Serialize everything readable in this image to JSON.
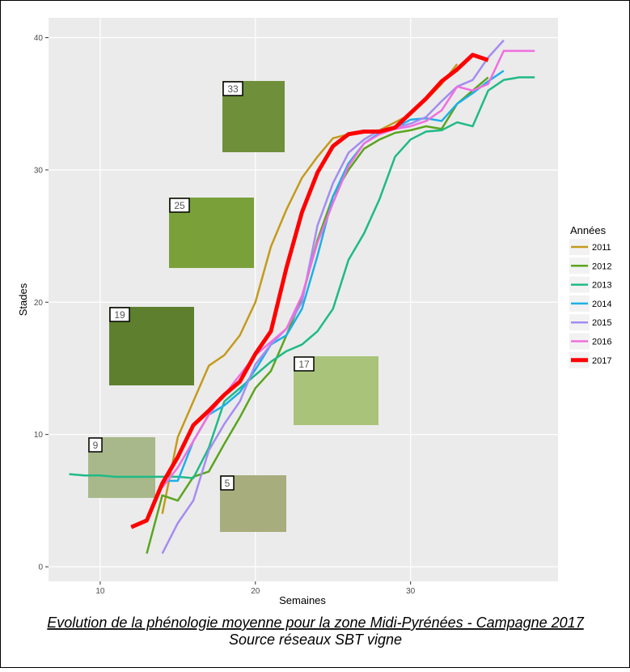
{
  "chart_data": {
    "type": "line",
    "xlabel": "Semaines",
    "ylabel": "Stades",
    "legend_title": "Années",
    "legend_position": "right",
    "caption": [
      "Evolution de la phénologie moyenne pour la zone Midi-Pyrénées - Campagne 2017",
      "Source réseaux SBT vigne"
    ],
    "image_labels": [
      "33",
      "25",
      "19",
      "17",
      "9",
      "5"
    ],
    "grid": true,
    "xlim": [
      6.67,
      39.5
    ],
    "xticks": [
      10,
      20,
      30
    ],
    "ylim": [
      -1.1,
      41.5
    ],
    "yticks": [
      0,
      10,
      20,
      30,
      40
    ],
    "x": [
      8,
      9,
      10,
      11,
      12,
      13,
      14,
      15,
      16,
      17,
      18,
      19,
      20,
      21,
      22,
      23,
      24,
      25,
      26,
      27,
      28,
      29,
      30,
      31,
      32,
      33,
      34,
      35,
      36,
      37,
      38
    ],
    "series": [
      {
        "name": "2011",
        "color": "#c49a1c",
        "values": [
          null,
          null,
          null,
          null,
          null,
          null,
          4,
          9.8,
          12.5,
          15.2,
          16,
          17.5,
          20,
          24.2,
          27,
          29.4,
          31,
          32.4,
          32.7,
          32.9,
          33,
          33.6,
          34.2,
          35.3,
          36.5,
          38,
          null,
          null,
          null,
          null,
          null
        ]
      },
      {
        "name": "2012",
        "color": "#5aa51e",
        "values": [
          null,
          null,
          null,
          null,
          null,
          1,
          5.4,
          5,
          6.8,
          7.2,
          9.3,
          11.3,
          13.5,
          14.8,
          17.5,
          20.3,
          24.7,
          28,
          30,
          31.6,
          32.3,
          32.8,
          33,
          33.3,
          33.1,
          35,
          36,
          37,
          null,
          null,
          null
        ]
      },
      {
        "name": "2013",
        "color": "#1fba86",
        "values": [
          7,
          6.9,
          6.9,
          6.8,
          6.8,
          6.8,
          6.8,
          6.8,
          6.7,
          9,
          12.5,
          13.5,
          14.5,
          15.5,
          16.3,
          16.8,
          17.8,
          19.5,
          23.2,
          25.2,
          27.8,
          31,
          32.3,
          32.9,
          33,
          33.6,
          33.3,
          36,
          36.8,
          37,
          37
        ]
      },
      {
        "name": "2014",
        "color": "#1cb0e8",
        "values": [
          null,
          null,
          null,
          null,
          null,
          null,
          6.5,
          6.5,
          9.5,
          11.5,
          12.2,
          13.2,
          14.9,
          16.8,
          17.5,
          19.5,
          23.5,
          28,
          30.5,
          32,
          32.8,
          33.2,
          33.8,
          33.9,
          33.7,
          35,
          35.8,
          36.7,
          37.5,
          null,
          null
        ]
      },
      {
        "name": "2015",
        "color": "#a48cf0",
        "values": [
          null,
          null,
          null,
          null,
          null,
          null,
          1,
          3.3,
          5,
          8.8,
          10.8,
          12.5,
          15.3,
          16.8,
          18,
          20,
          25.8,
          29,
          31.3,
          32.3,
          33,
          33.2,
          33.5,
          34,
          35.2,
          36.3,
          36.8,
          38.5,
          39.8,
          null,
          null
        ]
      },
      {
        "name": "2016",
        "color": "#f06ee0",
        "values": [
          null,
          null,
          null,
          null,
          null,
          null,
          6,
          7.5,
          9.5,
          11.5,
          13,
          14.5,
          16,
          17,
          18,
          20.5,
          24.5,
          27.5,
          30.3,
          32,
          32.7,
          33.1,
          33.3,
          33.7,
          34.5,
          36.3,
          36,
          36.5,
          39,
          39,
          39
        ]
      },
      {
        "name": "2017",
        "color": "#ff0000",
        "values": [
          null,
          null,
          null,
          null,
          3,
          3.5,
          6.3,
          8.3,
          10.7,
          11.8,
          13,
          14,
          16.1,
          17.8,
          22.6,
          26.8,
          29.8,
          31.8,
          32.7,
          32.9,
          32.9,
          33.2,
          34.3,
          35.4,
          36.7,
          37.6,
          38.7,
          38.3,
          null,
          null,
          null
        ]
      }
    ]
  }
}
